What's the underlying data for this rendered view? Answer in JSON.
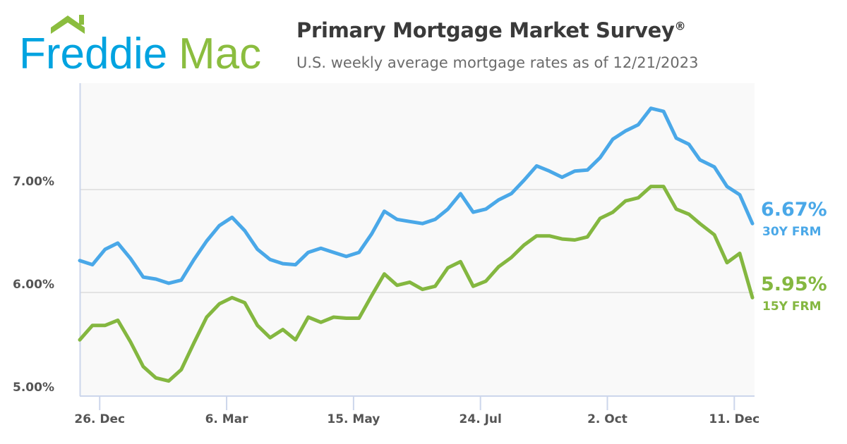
{
  "logo": {
    "text_part1": "Freddie",
    "text_part2": "Mac",
    "blue": "#00a3e0",
    "green": "#8bbd3f"
  },
  "header": {
    "title": "Primary Mortgage Market Survey",
    "title_mark": "®",
    "subtitle": "U.S. weekly average mortgage rates as of 12/21/2023"
  },
  "chart_data": {
    "type": "line",
    "title": "Primary Mortgage Market Survey®",
    "subtitle": "U.S. weekly average mortgage rates as of 12/21/2023",
    "xlabel": "",
    "ylabel": "",
    "ylim": [
      5.0,
      8.0
    ],
    "yticks": [
      {
        "value": 5.0,
        "label": "5.00%"
      },
      {
        "value": 6.0,
        "label": "6.00%"
      },
      {
        "value": 7.0,
        "label": "7.00%"
      }
    ],
    "xticks": [
      {
        "date": "2022-12-26",
        "label": "26. Dec"
      },
      {
        "date": "2023-03-06",
        "label": "6. Mar"
      },
      {
        "date": "2023-05-15",
        "label": "15. May"
      },
      {
        "date": "2023-07-24",
        "label": "24. Jul"
      },
      {
        "date": "2023-10-02",
        "label": "2. Oct"
      },
      {
        "date": "2023-12-11",
        "label": "11. Dec"
      }
    ],
    "grid": "horizontal",
    "x_start": "2022-12-15",
    "x": [
      "2022-12-15",
      "2022-12-22",
      "2022-12-29",
      "2023-01-05",
      "2023-01-12",
      "2023-01-19",
      "2023-01-26",
      "2023-02-02",
      "2023-02-09",
      "2023-02-16",
      "2023-02-23",
      "2023-03-02",
      "2023-03-09",
      "2023-03-16",
      "2023-03-23",
      "2023-03-30",
      "2023-04-06",
      "2023-04-13",
      "2023-04-20",
      "2023-04-27",
      "2023-05-04",
      "2023-05-11",
      "2023-05-18",
      "2023-05-25",
      "2023-06-01",
      "2023-06-08",
      "2023-06-15",
      "2023-06-22",
      "2023-06-29",
      "2023-07-06",
      "2023-07-13",
      "2023-07-20",
      "2023-07-27",
      "2023-08-03",
      "2023-08-10",
      "2023-08-17",
      "2023-08-24",
      "2023-08-31",
      "2023-09-07",
      "2023-09-14",
      "2023-09-21",
      "2023-09-28",
      "2023-10-05",
      "2023-10-12",
      "2023-10-19",
      "2023-10-26",
      "2023-11-02",
      "2023-11-09",
      "2023-11-16",
      "2023-11-22",
      "2023-11-30",
      "2023-12-07",
      "2023-12-14",
      "2023-12-21"
    ],
    "series": [
      {
        "name": "30Y FRM",
        "color": "#4aa8e8",
        "end_label": "6.67%",
        "values": [
          6.31,
          6.27,
          6.42,
          6.48,
          6.33,
          6.15,
          6.13,
          6.09,
          6.12,
          6.32,
          6.5,
          6.65,
          6.73,
          6.6,
          6.42,
          6.32,
          6.28,
          6.27,
          6.39,
          6.43,
          6.39,
          6.35,
          6.39,
          6.57,
          6.79,
          6.71,
          6.69,
          6.67,
          6.71,
          6.81,
          6.96,
          6.78,
          6.81,
          6.9,
          6.96,
          7.09,
          7.23,
          7.18,
          7.12,
          7.18,
          7.19,
          7.31,
          7.49,
          7.57,
          7.63,
          7.79,
          7.76,
          7.5,
          7.44,
          7.29,
          7.22,
          7.03,
          6.95,
          6.67
        ]
      },
      {
        "name": "15Y FRM",
        "color": "#84b740",
        "end_label": "5.95%",
        "values": [
          5.54,
          5.68,
          5.68,
          5.73,
          5.52,
          5.28,
          5.17,
          5.14,
          5.25,
          5.51,
          5.76,
          5.89,
          5.95,
          5.9,
          5.68,
          5.56,
          5.64,
          5.54,
          5.76,
          5.71,
          5.76,
          5.75,
          5.75,
          5.97,
          6.18,
          6.07,
          6.1,
          6.03,
          6.06,
          6.24,
          6.3,
          6.06,
          6.11,
          6.25,
          6.34,
          6.46,
          6.55,
          6.55,
          6.52,
          6.51,
          6.54,
          6.72,
          6.78,
          6.89,
          6.92,
          7.03,
          7.03,
          6.81,
          6.76,
          6.67,
          6.56,
          6.29,
          6.38,
          5.95
        ]
      }
    ],
    "legend": "right-end-labels"
  }
}
